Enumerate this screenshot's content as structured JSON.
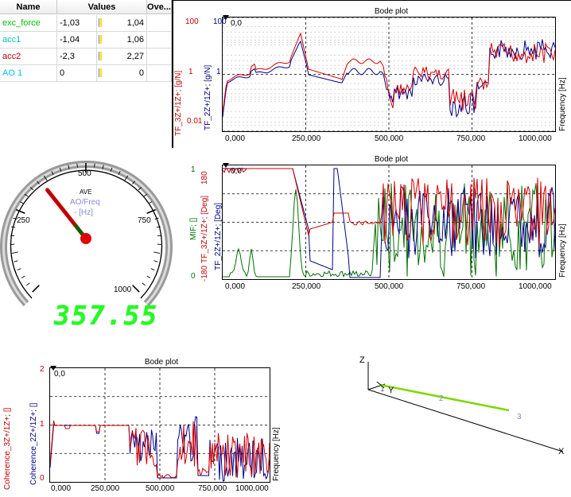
{
  "channel_table": {
    "headers": [
      "Name",
      "Values",
      "Ove..."
    ],
    "rows": [
      {
        "name": "exc_force",
        "color": "#00c000",
        "min": "-1,03",
        "max": "1,04"
      },
      {
        "name": "acc1",
        "color": "#00bfbf",
        "min": "-1,04",
        "max": "1,06"
      },
      {
        "name": "acc2",
        "color": "#c00000",
        "min": "-2,3",
        "max": "2,27"
      },
      {
        "name": "AO 1",
        "color": "#00bfff",
        "min": "0",
        "max": "0"
      }
    ]
  },
  "bode_magnitude": {
    "title": "Bode plot",
    "corner": "0,0",
    "ylabel_red": "TF_3Z+/1Z+; [g/N]",
    "ylabel_blue": "TF_2Z+/1Z+; [g/N]",
    "y_ticks": [
      "100",
      "1",
      "0.01"
    ],
    "x_ticks": [
      "0,000",
      "250,000",
      "500,000",
      "750,000",
      "1000,000"
    ],
    "xlabel": "Frequency [Hz]"
  },
  "bode_phase": {
    "title": "Bode plot",
    "corner": "0,0",
    "ylabel_mif": "MIF; []",
    "ylabel_red": "TF_3Z+/1Z+; [Deg]",
    "ylabel_blue": "TF_2Z+/1Z+; [Deg]",
    "y_ticks_green": [
      "1",
      "0"
    ],
    "y_ticks_red": [
      "180",
      "-180"
    ],
    "x_ticks": [
      "0,000",
      "250,000",
      "500,000",
      "750,000",
      "1000,000"
    ],
    "xlabel": "Frequency [Hz]"
  },
  "bode_coherence": {
    "title": "Bode plot",
    "corner": "0,0",
    "ylabel_red": "Coherence_3Z+/1Z+; []",
    "ylabel_blue": "Coherence_2Z+/1Z+; []",
    "y_ticks": [
      "2",
      "1",
      "0"
    ],
    "x_ticks": [
      "0,000",
      "250,000",
      "500,000",
      "750,000",
      "1000,000"
    ],
    "xlabel": "Frequency [Hz]"
  },
  "gauge": {
    "labels": [
      "250",
      "500",
      "750",
      "1000"
    ],
    "title": "AVE",
    "channel": "AO/Freq",
    "unit": "- [Hz]",
    "value": 357.55,
    "display": "357.55"
  },
  "geometry": {
    "axes": [
      "Z",
      "Y",
      "X"
    ],
    "points": [
      "1",
      "2",
      "3"
    ]
  },
  "colors": {
    "red": "#d40000",
    "blue": "#00008b",
    "green": "#007000",
    "grid": "#000000"
  }
}
